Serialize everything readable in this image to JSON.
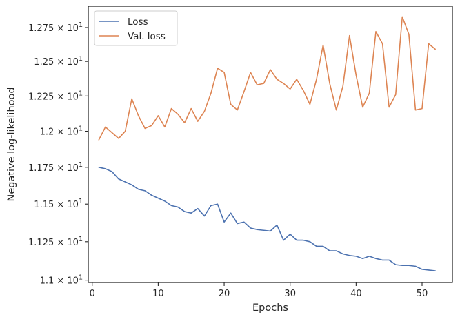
{
  "chart_data": {
    "type": "line",
    "title": "",
    "xlabel": "Epochs",
    "ylabel": "Negative log-likelihood",
    "xlim": [
      -0.6,
      54.6
    ],
    "ylim": [
      10.985,
      12.91
    ],
    "y_scale": "log",
    "grid": false,
    "legend_position": "top-left",
    "x_ticks": [
      0,
      10,
      20,
      30,
      40,
      50
    ],
    "x_tick_labels": [
      "0",
      "10",
      "20",
      "30",
      "40",
      "50"
    ],
    "y_ticks": [
      11.0,
      11.25,
      11.5,
      11.75,
      12.0,
      12.25,
      12.5,
      12.75
    ],
    "y_tick_labels": [
      {
        "mantissa": "1.1",
        "base": "10",
        "exp": "1"
      },
      {
        "mantissa": "1.125",
        "base": "10",
        "exp": "1"
      },
      {
        "mantissa": "1.15",
        "base": "10",
        "exp": "1"
      },
      {
        "mantissa": "1.175",
        "base": "10",
        "exp": "1"
      },
      {
        "mantissa": "1.2",
        "base": "10",
        "exp": "1"
      },
      {
        "mantissa": "1.225",
        "base": "10",
        "exp": "1"
      },
      {
        "mantissa": "1.25",
        "base": "10",
        "exp": "1"
      },
      {
        "mantissa": "1.275",
        "base": "10",
        "exp": "1"
      }
    ],
    "x": [
      1,
      2,
      3,
      4,
      5,
      6,
      7,
      8,
      9,
      10,
      11,
      12,
      13,
      14,
      15,
      16,
      17,
      18,
      19,
      20,
      21,
      22,
      23,
      24,
      25,
      26,
      27,
      28,
      29,
      30,
      31,
      32,
      33,
      34,
      35,
      36,
      37,
      38,
      39,
      40,
      41,
      42,
      43,
      44,
      45,
      46,
      47,
      48,
      49,
      50,
      51,
      52
    ],
    "series": [
      {
        "name": "Loss",
        "color": "#4c72b0",
        "values": [
          11.75,
          11.74,
          11.72,
          11.67,
          11.65,
          11.63,
          11.6,
          11.59,
          11.56,
          11.54,
          11.52,
          11.49,
          11.48,
          11.45,
          11.44,
          11.47,
          11.42,
          11.49,
          11.5,
          11.38,
          11.44,
          11.37,
          11.38,
          11.34,
          11.33,
          11.325,
          11.32,
          11.36,
          11.26,
          11.3,
          11.26,
          11.26,
          11.25,
          11.22,
          11.22,
          11.19,
          11.19,
          11.17,
          11.16,
          11.155,
          11.14,
          11.155,
          11.14,
          11.13,
          11.13,
          11.1,
          11.095,
          11.095,
          11.09,
          11.07,
          11.065,
          11.06
        ]
      },
      {
        "name": "Val. loss",
        "color": "#dd8452",
        "values": [
          11.94,
          12.03,
          11.99,
          11.95,
          12.0,
          12.23,
          12.11,
          12.02,
          12.04,
          12.11,
          12.03,
          12.16,
          12.12,
          12.06,
          12.16,
          12.07,
          12.14,
          12.27,
          12.45,
          12.42,
          12.19,
          12.15,
          12.28,
          12.42,
          12.33,
          12.34,
          12.44,
          12.37,
          12.34,
          12.3,
          12.37,
          12.29,
          12.19,
          12.37,
          12.62,
          12.34,
          12.15,
          12.32,
          12.69,
          12.4,
          12.17,
          12.27,
          12.72,
          12.63,
          12.17,
          12.26,
          12.83,
          12.7,
          12.15,
          12.16,
          12.63,
          12.59
        ]
      }
    ]
  }
}
